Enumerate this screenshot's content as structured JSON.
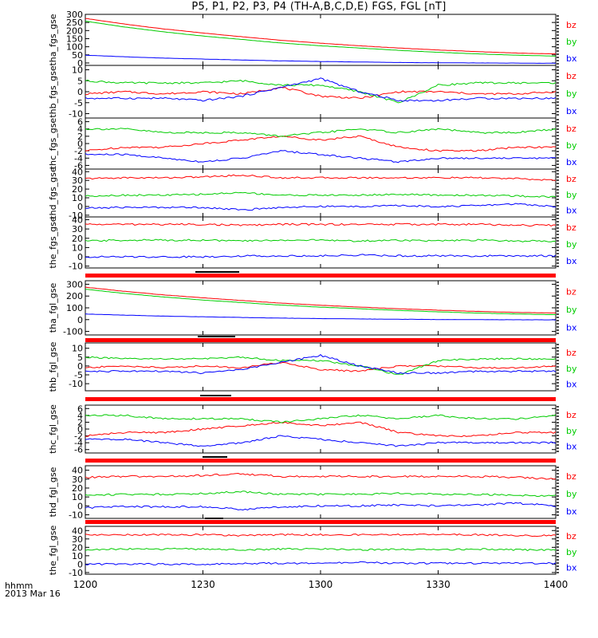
{
  "title": "P5, P1, P2, P3, P4 (TH-A,B,C,D,E) FGS, FGL [nT]",
  "time_axis": {
    "row_label": "hhmm",
    "date": "2013 Mar 16",
    "ticks": [
      "1200",
      "1230",
      "1300",
      "1330",
      "1400"
    ]
  },
  "colors": {
    "bx": "#0000ff",
    "by": "#00cc00",
    "bz": "#ff0000",
    "flag": "#ff0000"
  },
  "chart_data": [
    {
      "type": "line",
      "ylabel": "tha_fgs_gse",
      "ylim": [
        -15,
        300
      ],
      "ticks": [
        "300",
        "250",
        "200",
        "150",
        "100",
        "50",
        "0"
      ],
      "tick_values": [
        300,
        250,
        200,
        150,
        100,
        50,
        0
      ],
      "x": [
        "1200",
        "1210",
        "1220",
        "1230",
        "1240",
        "1250",
        "1300",
        "1310",
        "1320",
        "1330",
        "1340",
        "1350",
        "1400"
      ],
      "series": [
        {
          "name": "bz",
          "values": [
            275,
            240,
            210,
            185,
            162,
            140,
            122,
            106,
            92,
            80,
            70,
            61,
            56
          ]
        },
        {
          "name": "by",
          "values": [
            258,
            222,
            192,
            166,
            145,
            123,
            106,
            92,
            78,
            66,
            56,
            48,
            42
          ]
        },
        {
          "name": "bx",
          "values": [
            48,
            38,
            30,
            24,
            18,
            13,
            9,
            6,
            3,
            1,
            0,
            -1,
            -2
          ]
        }
      ],
      "legend": [
        "bz",
        "by",
        "bx"
      ]
    },
    {
      "type": "line",
      "ylabel": "thb_fgs_gse",
      "ylim": [
        -12,
        12
      ],
      "ticks": [
        "10",
        "5",
        "0",
        "-5",
        "-10"
      ],
      "tick_values": [
        10,
        5,
        0,
        -5,
        -10
      ],
      "x": [
        "1200",
        "1210",
        "1220",
        "1230",
        "1240",
        "1250",
        "1300",
        "1310",
        "1320",
        "1330",
        "1340",
        "1350",
        "1400"
      ],
      "series": [
        {
          "name": "bz",
          "values": [
            -1,
            0,
            -1,
            0,
            -1,
            2,
            -2,
            -3,
            0,
            0,
            -1,
            -1,
            0
          ]
        },
        {
          "name": "by",
          "values": [
            5,
            4,
            4,
            4,
            5,
            3,
            3,
            0,
            -5,
            3,
            4,
            4,
            4
          ]
        },
        {
          "name": "bx",
          "values": [
            -3,
            -3,
            -3,
            -4,
            -2,
            2,
            6,
            0,
            -4,
            -4,
            -3,
            -3,
            -3
          ]
        }
      ],
      "legend": [
        "bz",
        "by",
        "bx"
      ]
    },
    {
      "type": "line",
      "ylabel": "thc_fgs_gse",
      "ylim": [
        -7,
        7
      ],
      "ticks": [
        "6",
        "4",
        "2",
        "0",
        "-2",
        "-4",
        "-6"
      ],
      "tick_values": [
        6,
        4,
        2,
        0,
        -2,
        -4,
        -6
      ],
      "x": [
        "1200",
        "1210",
        "1220",
        "1230",
        "1240",
        "1250",
        "1300",
        "1310",
        "1320",
        "1330",
        "1340",
        "1350",
        "1400"
      ],
      "series": [
        {
          "name": "bz",
          "values": [
            -2,
            -1,
            -1,
            0,
            1,
            2,
            1,
            2,
            -1,
            -2,
            -2,
            -1,
            -1
          ]
        },
        {
          "name": "by",
          "values": [
            4,
            4,
            3,
            3,
            3,
            2,
            3,
            4,
            3,
            4,
            3,
            3,
            4
          ]
        },
        {
          "name": "bx",
          "values": [
            -3,
            -3,
            -4,
            -5,
            -4,
            -2,
            -3,
            -4,
            -5,
            -4,
            -4,
            -4,
            -4
          ]
        }
      ],
      "legend": [
        "bz",
        "by",
        "bx"
      ]
    },
    {
      "type": "line",
      "ylabel": "thd_fgs_gse",
      "ylim": [
        -12,
        43
      ],
      "ticks": [
        "40",
        "30",
        "20",
        "10",
        "0",
        "-10"
      ],
      "tick_values": [
        40,
        30,
        20,
        10,
        0,
        -10
      ],
      "x": [
        "1200",
        "1210",
        "1220",
        "1230",
        "1240",
        "1250",
        "1300",
        "1310",
        "1320",
        "1330",
        "1340",
        "1350",
        "1400"
      ],
      "series": [
        {
          "name": "bz",
          "values": [
            32,
            33,
            33,
            34,
            36,
            33,
            33,
            33,
            33,
            33,
            33,
            32,
            30
          ]
        },
        {
          "name": "by",
          "values": [
            12,
            13,
            13,
            14,
            16,
            13,
            13,
            13,
            14,
            13,
            13,
            12,
            11
          ]
        },
        {
          "name": "bx",
          "values": [
            -2,
            -1,
            -1,
            -1,
            -4,
            -1,
            0,
            0,
            1,
            0,
            1,
            3,
            0
          ]
        }
      ],
      "legend": [
        "bz",
        "by",
        "bx"
      ]
    },
    {
      "type": "line",
      "ylabel": "the_fgs_gse",
      "ylim": [
        -12,
        43
      ],
      "ticks": [
        "40",
        "30",
        "20",
        "10",
        "0",
        "-10"
      ],
      "tick_values": [
        40,
        30,
        20,
        10,
        0,
        -10
      ],
      "x": [
        "1200",
        "1210",
        "1220",
        "1230",
        "1240",
        "1250",
        "1300",
        "1310",
        "1320",
        "1330",
        "1340",
        "1350",
        "1400"
      ],
      "series": [
        {
          "name": "bz",
          "values": [
            35,
            35,
            35,
            35,
            34,
            35,
            35,
            35,
            35,
            35,
            35,
            34,
            34
          ]
        },
        {
          "name": "by",
          "values": [
            17,
            18,
            18,
            18,
            17,
            18,
            18,
            17,
            18,
            17,
            18,
            17,
            17
          ]
        },
        {
          "name": "bx",
          "values": [
            0,
            0,
            0,
            0,
            1,
            1,
            1,
            2,
            1,
            1,
            1,
            1,
            1
          ]
        }
      ],
      "legend": [
        "bz",
        "by",
        "bx"
      ]
    },
    {
      "type": "line",
      "ylabel": "tha_fgl_gse",
      "ylim": [
        -130,
        330
      ],
      "ticks": [
        "300",
        "200",
        "100",
        "0",
        "-100"
      ],
      "tick_values": [
        300,
        200,
        100,
        0,
        -100
      ],
      "x": [
        "1200",
        "1210",
        "1220",
        "1230",
        "1240",
        "1250",
        "1300",
        "1310",
        "1320",
        "1330",
        "1340",
        "1350",
        "1400"
      ],
      "series": [
        {
          "name": "bz",
          "values": [
            275,
            240,
            210,
            185,
            162,
            140,
            122,
            106,
            92,
            80,
            70,
            61,
            56
          ]
        },
        {
          "name": "by",
          "values": [
            258,
            222,
            192,
            166,
            145,
            123,
            106,
            92,
            78,
            66,
            56,
            48,
            42
          ]
        },
        {
          "name": "bx",
          "values": [
            48,
            38,
            30,
            24,
            18,
            13,
            9,
            6,
            3,
            1,
            0,
            -1,
            -2
          ]
        }
      ],
      "legend": [
        "bz",
        "by",
        "bx"
      ]
    },
    {
      "type": "line",
      "ylabel": "thb_fgl_gse",
      "ylim": [
        -14,
        13
      ],
      "ticks": [
        "10",
        "5",
        "0",
        "-5",
        "-10"
      ],
      "tick_values": [
        10,
        5,
        0,
        -5,
        -10
      ],
      "x": [
        "1200",
        "1210",
        "1220",
        "1230",
        "1240",
        "1250",
        "1300",
        "1310",
        "1320",
        "1330",
        "1340",
        "1350",
        "1400"
      ],
      "series": [
        {
          "name": "bz",
          "values": [
            -1,
            0,
            -1,
            0,
            -1,
            2,
            -2,
            -3,
            0,
            0,
            -1,
            -1,
            0
          ]
        },
        {
          "name": "by",
          "values": [
            5,
            4,
            4,
            4,
            5,
            3,
            3,
            0,
            -5,
            3,
            4,
            4,
            4
          ]
        },
        {
          "name": "bx",
          "values": [
            -3,
            -3,
            -3,
            -4,
            -2,
            2,
            6,
            0,
            -4,
            -4,
            -3,
            -3,
            -3
          ]
        }
      ],
      "legend": [
        "bz",
        "by",
        "bx"
      ]
    },
    {
      "type": "line",
      "ylabel": "thc_fgl_gse",
      "ylim": [
        -7,
        7
      ],
      "ticks": [
        "6",
        "4",
        "2",
        "0",
        "-2",
        "-4",
        "-6"
      ],
      "tick_values": [
        6,
        4,
        2,
        0,
        -2,
        -4,
        -6
      ],
      "x": [
        "1200",
        "1210",
        "1220",
        "1230",
        "1240",
        "1250",
        "1300",
        "1310",
        "1320",
        "1330",
        "1340",
        "1350",
        "1400"
      ],
      "series": [
        {
          "name": "bz",
          "values": [
            -2,
            -1,
            -1,
            0,
            1,
            2,
            1,
            2,
            -1,
            -2,
            -2,
            -1,
            -1
          ]
        },
        {
          "name": "by",
          "values": [
            4,
            4,
            3,
            3,
            3,
            2,
            3,
            4,
            3,
            4,
            3,
            3,
            4
          ]
        },
        {
          "name": "bx",
          "values": [
            -3,
            -3,
            -4,
            -5,
            -4,
            -2,
            -3,
            -4,
            -5,
            -4,
            -4,
            -4,
            -4
          ]
        }
      ],
      "legend": [
        "bz",
        "by",
        "bx"
      ]
    },
    {
      "type": "line",
      "ylabel": "thd_fgl_gse",
      "ylim": [
        -14,
        45
      ],
      "ticks": [
        "40",
        "30",
        "20",
        "10",
        "0",
        "-10"
      ],
      "tick_values": [
        40,
        30,
        20,
        10,
        0,
        -10
      ],
      "x": [
        "1200",
        "1210",
        "1220",
        "1230",
        "1240",
        "1250",
        "1300",
        "1310",
        "1320",
        "1330",
        "1340",
        "1350",
        "1400"
      ],
      "series": [
        {
          "name": "bz",
          "values": [
            32,
            33,
            33,
            34,
            36,
            33,
            33,
            33,
            33,
            33,
            33,
            32,
            30
          ]
        },
        {
          "name": "by",
          "values": [
            12,
            13,
            13,
            14,
            16,
            13,
            13,
            13,
            14,
            13,
            13,
            12,
            11
          ]
        },
        {
          "name": "bx",
          "values": [
            -2,
            -1,
            -1,
            -1,
            -4,
            -1,
            0,
            0,
            1,
            0,
            1,
            3,
            0
          ]
        }
      ],
      "legend": [
        "bz",
        "by",
        "bx"
      ]
    },
    {
      "type": "line",
      "ylabel": "the_fgl_gse",
      "ylim": [
        -12,
        45
      ],
      "ticks": [
        "40",
        "30",
        "20",
        "10",
        "0",
        "-10"
      ],
      "tick_values": [
        40,
        30,
        20,
        10,
        0,
        -10
      ],
      "x": [
        "1200",
        "1210",
        "1220",
        "1230",
        "1240",
        "1250",
        "1300",
        "1310",
        "1320",
        "1330",
        "1340",
        "1350",
        "1400"
      ],
      "series": [
        {
          "name": "bz",
          "values": [
            35,
            35,
            35,
            35,
            34,
            35,
            35,
            35,
            35,
            35,
            35,
            34,
            34
          ]
        },
        {
          "name": "by",
          "values": [
            17,
            18,
            18,
            18,
            17,
            18,
            18,
            17,
            18,
            17,
            18,
            17,
            17
          ]
        },
        {
          "name": "bx",
          "values": [
            0,
            0,
            0,
            0,
            1,
            1,
            1,
            2,
            1,
            1,
            1,
            1,
            1
          ]
        }
      ],
      "legend": [
        "bz",
        "by",
        "bx"
      ]
    }
  ]
}
